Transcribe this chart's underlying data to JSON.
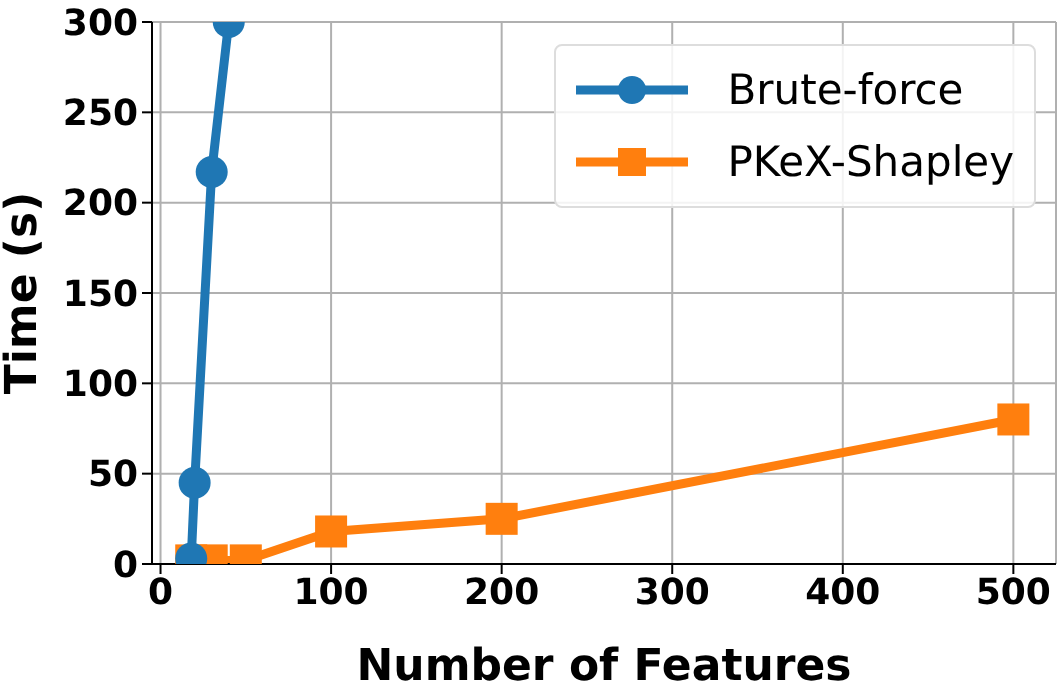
{
  "chart_data": {
    "type": "line",
    "xlabel": "Number of Features",
    "ylabel": "Time (s)",
    "xlim": [
      -5,
      525
    ],
    "xticks": [
      0,
      100,
      200,
      300,
      400,
      500
    ],
    "ylim": [
      0,
      300
    ],
    "yticks": [
      0,
      50,
      100,
      150,
      200,
      250,
      300
    ],
    "grid": true,
    "legend": "top right",
    "line_style": "solid",
    "series": [
      {
        "name": "Brute-force",
        "color": "#1f77b4",
        "marker": "circle",
        "x": [
          18,
          20,
          30,
          40
        ],
        "values": [
          3,
          45,
          217,
          300
        ]
      },
      {
        "name": "PKeX-Shapley",
        "color": "#ff7f0e",
        "marker": "square",
        "x": [
          18,
          30,
          50,
          100,
          200,
          500
        ],
        "values": [
          2,
          2,
          2,
          18,
          25,
          80
        ]
      }
    ]
  }
}
